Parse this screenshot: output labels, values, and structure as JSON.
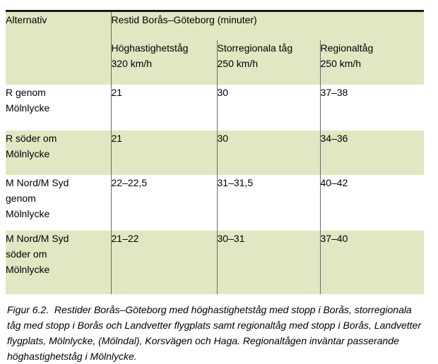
{
  "table": {
    "header": {
      "alternativ": "Alternativ",
      "main": "Restid Borås–Göteborg (minuter)",
      "sub": [
        "Höghastighetståg\n320 km/h",
        "Storregionala tåg\n250 km/h",
        "Regionaltåg\n250 km/h"
      ]
    },
    "rows": [
      {
        "alt": "R genom\nMölnlycke",
        "hst": "21",
        "storregional": "30",
        "regional": "37–38"
      },
      {
        "alt": "R söder om\nMölnlycke",
        "hst": "21",
        "storregional": "30",
        "regional": "34–36"
      },
      {
        "alt": "M Nord/M Syd\ngenom\nMölnlycke",
        "hst": "22–22,5",
        "storregional": "31–31,5",
        "regional": "40–42"
      },
      {
        "alt": "M Nord/M Syd\nsöder om\nMölnlycke",
        "hst": "21–22",
        "storregional": "30–31",
        "regional": "37–40"
      }
    ]
  },
  "caption": "Figur 6.2.  Restider Borås–Göteborg med höghastighetståg med stopp i Borås, storregionala tåg med stopp i Borås och Landvetter flygplats samt regionaltåg med stopp i Borås, Landvetter flygplats, Mölnlycke, (Mölndal), Korsvägen och Haga. Regionaltågen inväntar passerande höghastighetståg i Mölnlycke.",
  "colors": {
    "row_highlight": "#e3e6c2",
    "divider": "#6b6b6b",
    "top_border": "#1a1a1a"
  }
}
